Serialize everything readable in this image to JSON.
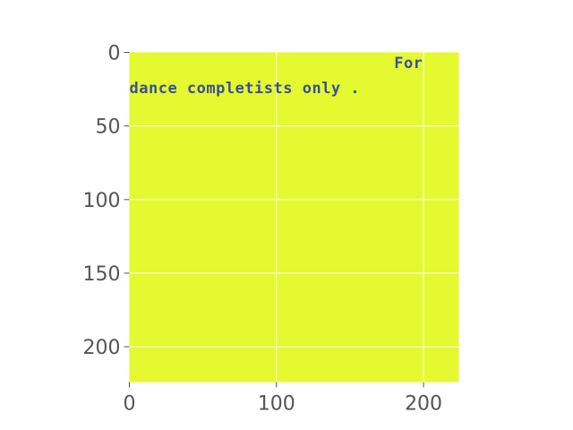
{
  "chart_data": {
    "type": "heatmap",
    "title": "",
    "xlabel": "",
    "ylabel": "",
    "xlim": [
      0,
      224
    ],
    "ylim": [
      224,
      0
    ],
    "x_ticks": [
      "0",
      "100",
      "200"
    ],
    "y_ticks": [
      "0",
      "50",
      "100",
      "150",
      "200"
    ],
    "x_tick_values": [
      0,
      100,
      200
    ],
    "y_tick_values": [
      0,
      50,
      100,
      150,
      200
    ],
    "grid": true,
    "background_color": "#e4f92f",
    "image_text": [
      {
        "text": "For",
        "x": 180,
        "y": 7
      },
      {
        "text": "dance completists only .",
        "x": 0,
        "y": 24
      }
    ]
  },
  "colors": {
    "image_fill": "#e4f92f",
    "text_color": "#3a4f9a",
    "grid": "#ffffff",
    "tick_label": "#555555",
    "tick_mark": "#555555"
  }
}
